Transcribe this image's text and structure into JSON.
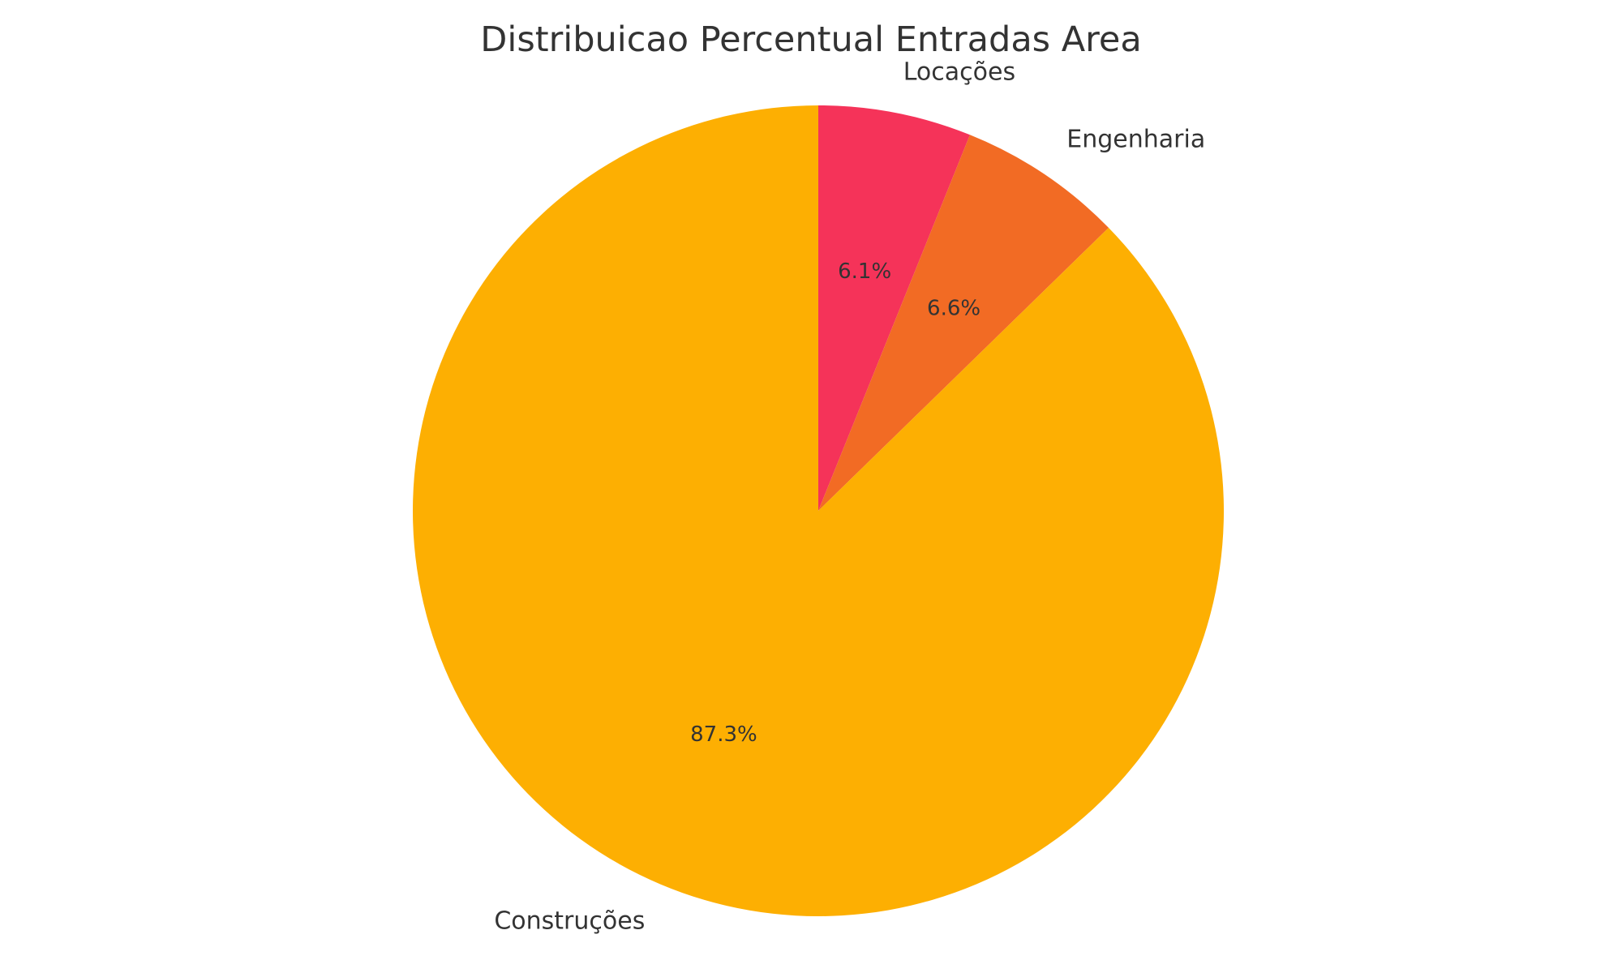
{
  "chart_data": {
    "type": "pie",
    "title": "Distribuicao Percentual Entradas Area",
    "categories": [
      "Locações",
      "Engenharia",
      "Construções"
    ],
    "values": [
      6.1,
      6.6,
      87.3
    ],
    "value_labels": [
      "6.1%",
      "6.6%",
      "87.3%"
    ],
    "colors": [
      "#F53359",
      "#F26B24",
      "#FDAF02"
    ],
    "start_angle": "top",
    "direction": "clockwise",
    "legend": "none"
  }
}
